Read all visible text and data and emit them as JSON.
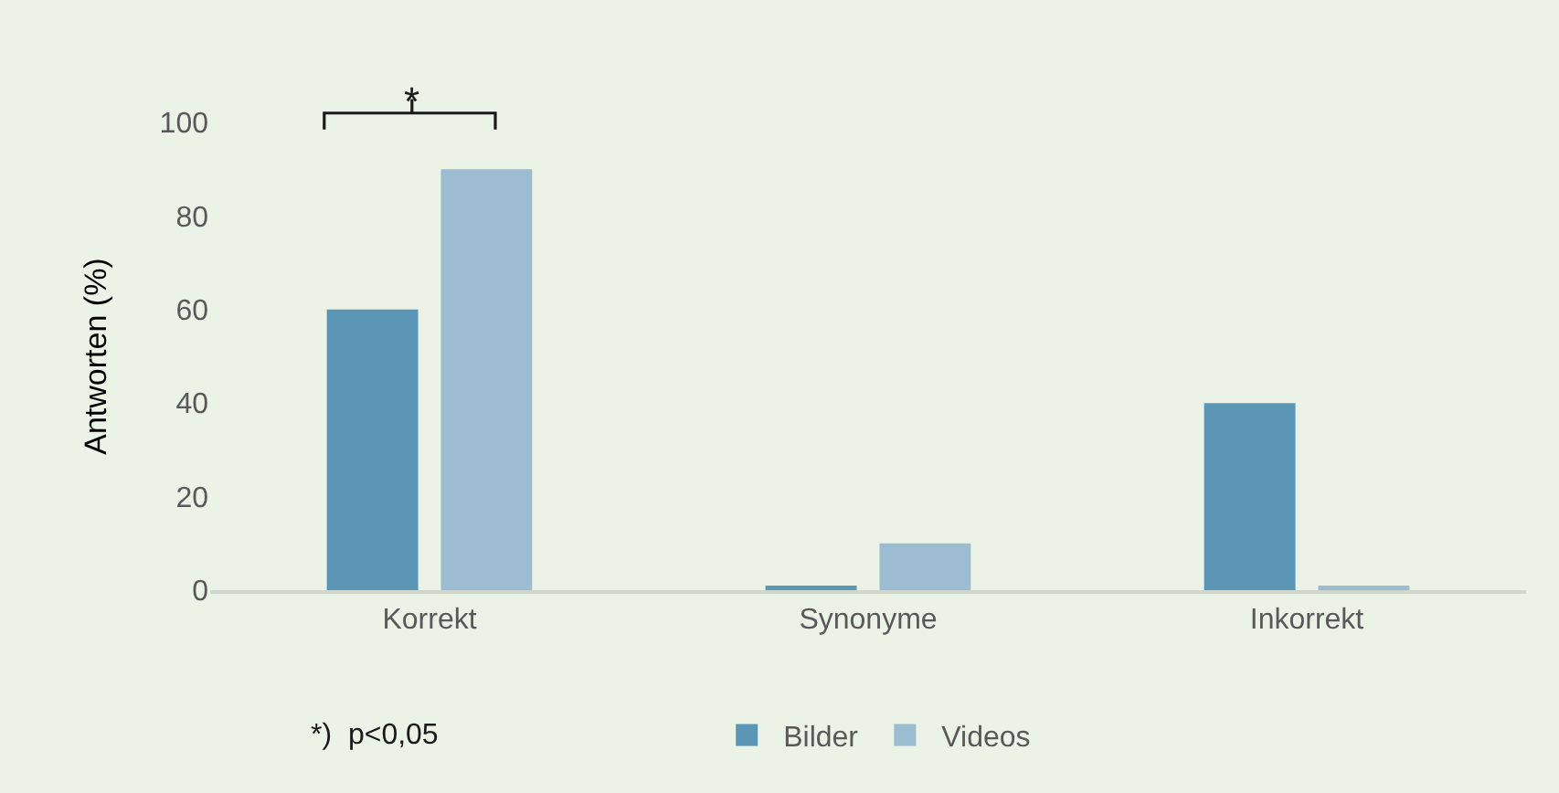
{
  "chart_data": {
    "type": "bar",
    "ylabel": "Antworten (%)",
    "categories": [
      "Korrekt",
      "Synonyme",
      "Inkorrekt"
    ],
    "series": [
      {
        "name": "Bilder",
        "color": "#5b96b7",
        "values": [
          60,
          1,
          40
        ]
      },
      {
        "name": "Videos",
        "color": "#9bbcd1",
        "values": [
          90,
          10,
          1
        ]
      }
    ],
    "ylim": [
      0,
      100
    ],
    "yticks": [
      0,
      20,
      40,
      60,
      80,
      100
    ],
    "grid": false,
    "legend": "bottom",
    "annotations": [
      "*",
      "*)  p<0,05"
    ]
  }
}
